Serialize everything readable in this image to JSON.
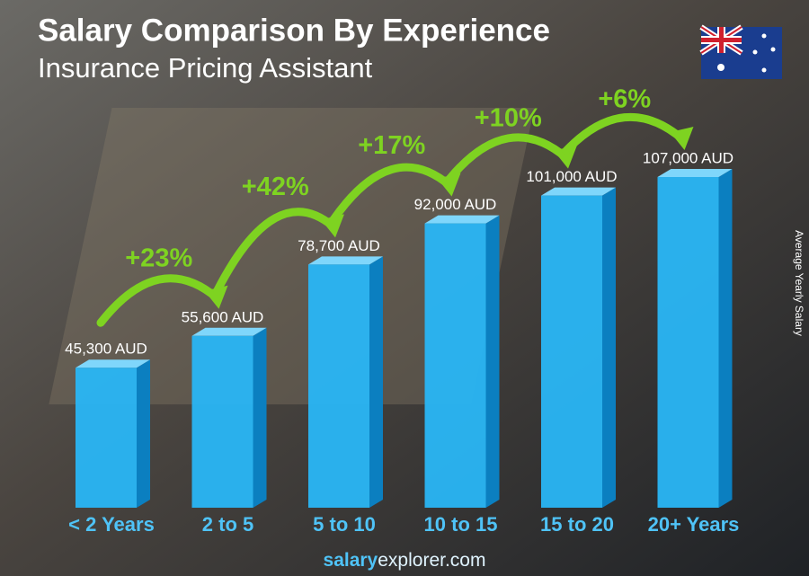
{
  "chart_data": {
    "type": "bar3d",
    "title": "Salary Comparison By Experience",
    "subtitle": "Insurance Pricing Assistant",
    "y_label": "Average Yearly Salary",
    "categories": [
      "< 2 Years",
      "2 to 5",
      "5 to 10",
      "10 to 15",
      "15 to 20",
      "20+ Years"
    ],
    "values": [
      45300,
      55600,
      78700,
      92000,
      101000,
      107000
    ],
    "value_labels": [
      "45,300 AUD",
      "55,600 AUD",
      "78,700 AUD",
      "92,000 AUD",
      "101,000 AUD",
      "107,000 AUD"
    ],
    "changes": [
      "+23%",
      "+42%",
      "+17%",
      "+10%",
      "+6%"
    ],
    "color": "#29b6f6",
    "footer": [
      "salary",
      "explorer.com"
    ]
  }
}
